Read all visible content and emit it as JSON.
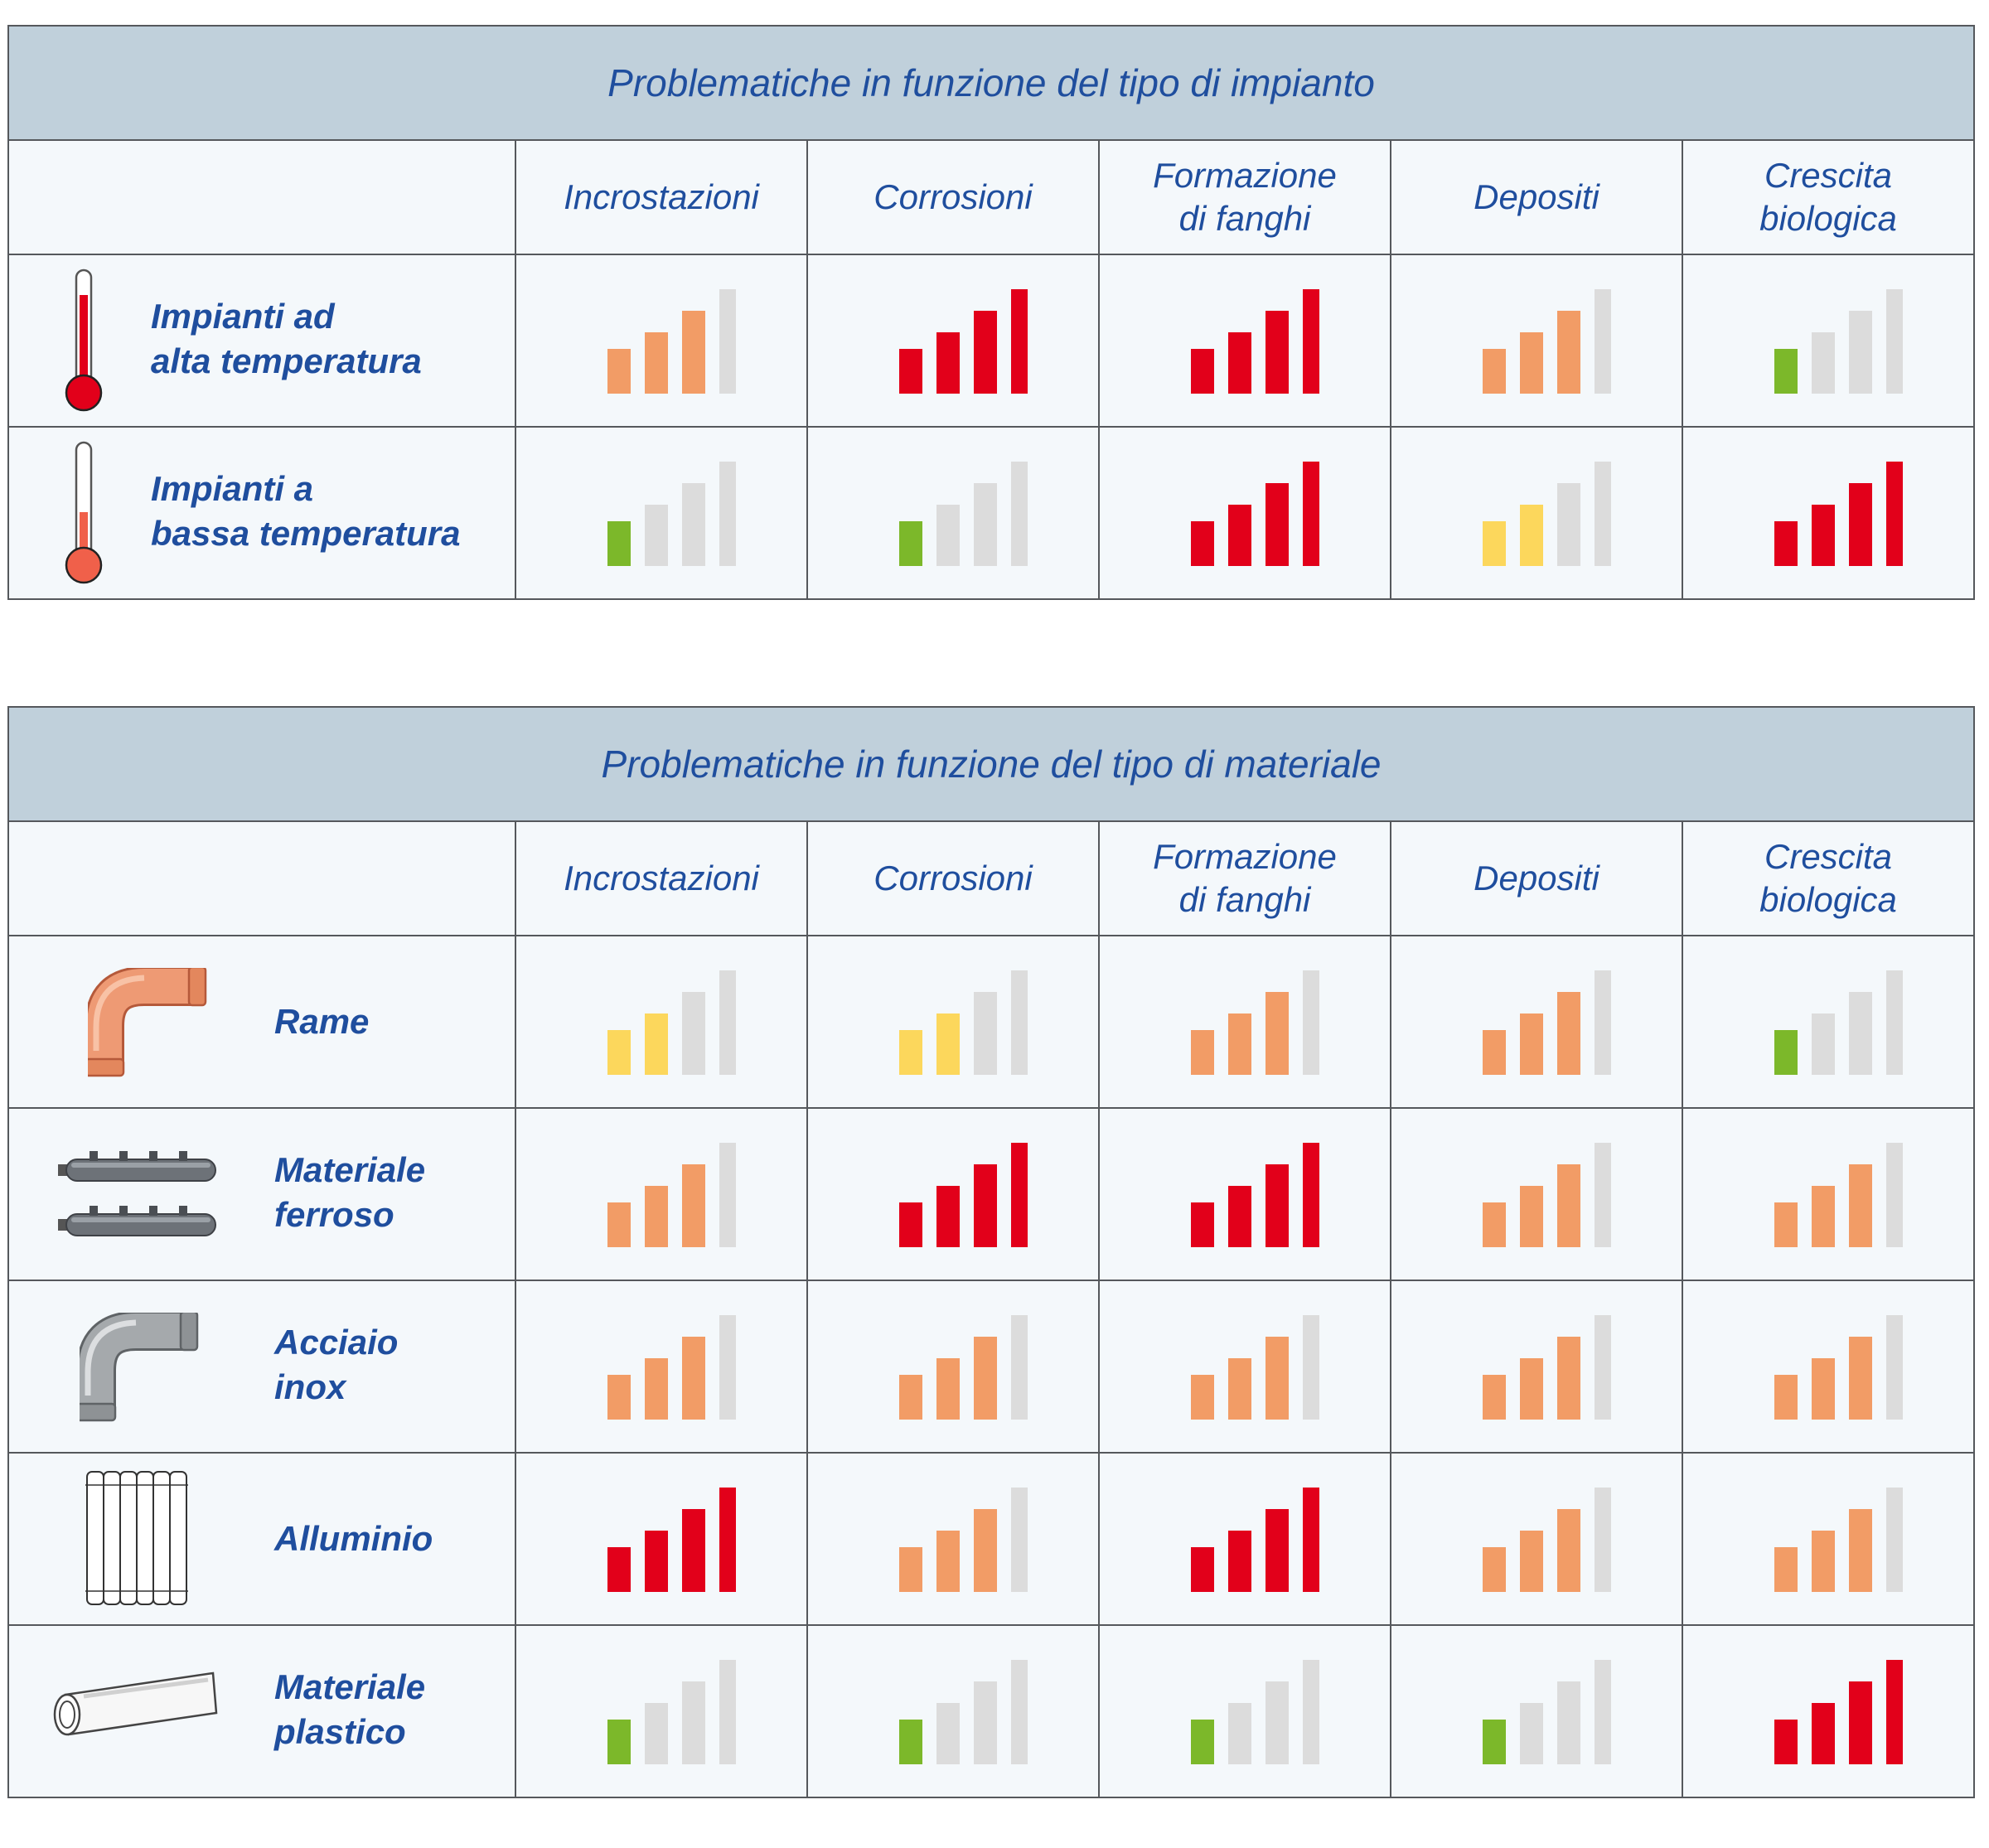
{
  "colors": {
    "green": "#7cb82a",
    "yellow": "#fcd75c",
    "orange": "#f29c66",
    "red": "#e2001a",
    "gray": "#dcdcdc",
    "title_bg": "#c0d0db",
    "text": "#1f4e9e"
  },
  "tables": [
    {
      "title": "Problematiche in funzione del tipo di impianto",
      "columns": [
        "Incrostazioni",
        "Corrosioni",
        "Formazione\ndi fanghi",
        "Depositi",
        "Crescita\nbiologica"
      ],
      "rows": [
        {
          "label": "Impianti ad\nalta temperatura",
          "icon": "thermometer-high-icon",
          "ratings": [
            {
              "level": 3,
              "color": "orange"
            },
            {
              "level": 4,
              "color": "red"
            },
            {
              "level": 4,
              "color": "red"
            },
            {
              "level": 3,
              "color": "orange"
            },
            {
              "level": 1,
              "color": "green"
            }
          ]
        },
        {
          "label": "Impianti a\nbassa temperatura",
          "icon": "thermometer-low-icon",
          "ratings": [
            {
              "level": 1,
              "color": "green"
            },
            {
              "level": 1,
              "color": "green"
            },
            {
              "level": 4,
              "color": "red"
            },
            {
              "level": 2,
              "color": "yellow"
            },
            {
              "level": 4,
              "color": "red"
            }
          ]
        }
      ]
    },
    {
      "title": "Problematiche in funzione del tipo di materiale",
      "columns": [
        "Incrostazioni",
        "Corrosioni",
        "Formazione\ndi fanghi",
        "Depositi",
        "Crescita\nbiologica"
      ],
      "rows": [
        {
          "label": "Rame",
          "icon": "copper-elbow-icon",
          "ratings": [
            {
              "level": 2,
              "color": "yellow"
            },
            {
              "level": 2,
              "color": "yellow"
            },
            {
              "level": 3,
              "color": "orange"
            },
            {
              "level": 3,
              "color": "orange"
            },
            {
              "level": 1,
              "color": "green"
            }
          ]
        },
        {
          "label": "Materiale\nferroso",
          "icon": "iron-manifold-icon",
          "ratings": [
            {
              "level": 3,
              "color": "orange"
            },
            {
              "level": 4,
              "color": "red"
            },
            {
              "level": 4,
              "color": "red"
            },
            {
              "level": 3,
              "color": "orange"
            },
            {
              "level": 3,
              "color": "orange"
            }
          ]
        },
        {
          "label": "Acciaio\ninox",
          "icon": "steel-elbow-icon",
          "ratings": [
            {
              "level": 3,
              "color": "orange"
            },
            {
              "level": 3,
              "color": "orange"
            },
            {
              "level": 3,
              "color": "orange"
            },
            {
              "level": 3,
              "color": "orange"
            },
            {
              "level": 3,
              "color": "orange"
            }
          ]
        },
        {
          "label": "Alluminio",
          "icon": "aluminium-radiator-icon",
          "ratings": [
            {
              "level": 4,
              "color": "red"
            },
            {
              "level": 3,
              "color": "orange"
            },
            {
              "level": 4,
              "color": "red"
            },
            {
              "level": 3,
              "color": "orange"
            },
            {
              "level": 3,
              "color": "orange"
            }
          ]
        },
        {
          "label": "Materiale\nplastico",
          "icon": "plastic-pipe-icon",
          "ratings": [
            {
              "level": 1,
              "color": "green"
            },
            {
              "level": 1,
              "color": "green"
            },
            {
              "level": 1,
              "color": "green"
            },
            {
              "level": 1,
              "color": "green"
            },
            {
              "level": 4,
              "color": "red"
            }
          ]
        }
      ]
    }
  ]
}
